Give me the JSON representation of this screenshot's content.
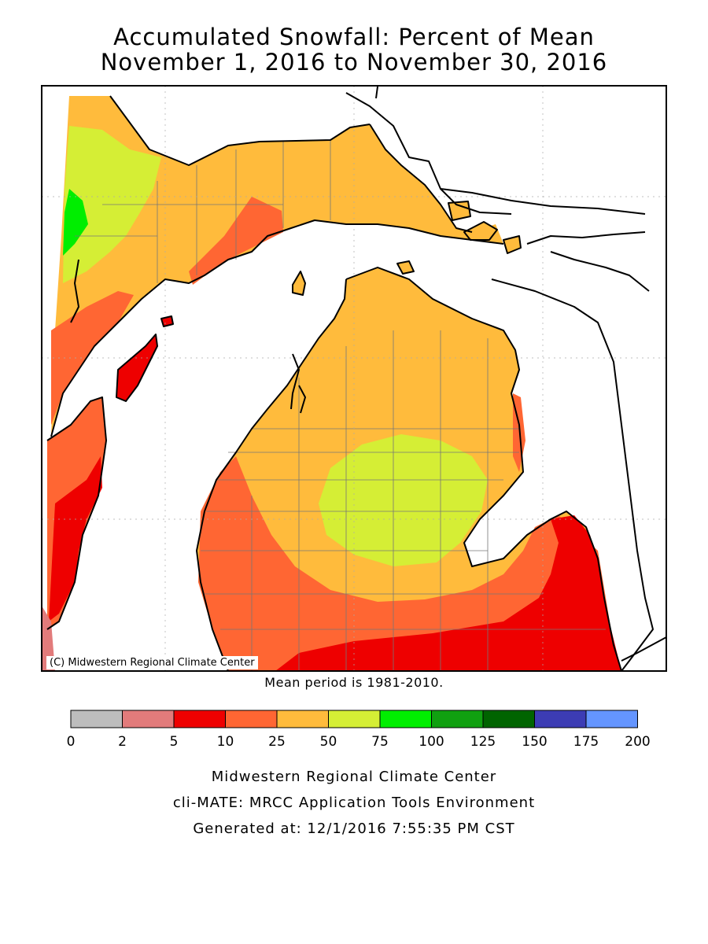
{
  "title_line1": "Accumulated Snowfall: Percent of Mean",
  "title_line2": "November 1, 2016 to November 30, 2016",
  "copyright": "(C) Midwestern Regional Climate Center",
  "mean_period": "Mean period is 1981-2010.",
  "legend": {
    "bins": [
      {
        "from": 0,
        "to": 2,
        "color": "#bdbdbd"
      },
      {
        "from": 2,
        "to": 5,
        "color": "#e27b7b"
      },
      {
        "from": 5,
        "to": 10,
        "color": "#ee0000"
      },
      {
        "from": 10,
        "to": 25,
        "color": "#ff6633"
      },
      {
        "from": 25,
        "to": 50,
        "color": "#ffbb3c"
      },
      {
        "from": 50,
        "to": 75,
        "color": "#d5ee35"
      },
      {
        "from": 75,
        "to": 100,
        "color": "#00ee00"
      },
      {
        "from": 100,
        "to": 125,
        "color": "#10a010"
      },
      {
        "from": 125,
        "to": 150,
        "color": "#006400"
      },
      {
        "from": 150,
        "to": 175,
        "color": "#3c3cb4"
      },
      {
        "from": 175,
        "to": 200,
        "color": "#6495ff"
      }
    ],
    "ticks": [
      "0",
      "2",
      "5",
      "10",
      "25",
      "50",
      "75",
      "100",
      "125",
      "150",
      "175",
      "200"
    ]
  },
  "footer": {
    "line1": "Midwestern Regional Climate Center",
    "line2": "cli-MATE: MRCC Application Tools Environment",
    "line3": "Generated at: 12/1/2016 7:55:35 PM CST"
  }
}
